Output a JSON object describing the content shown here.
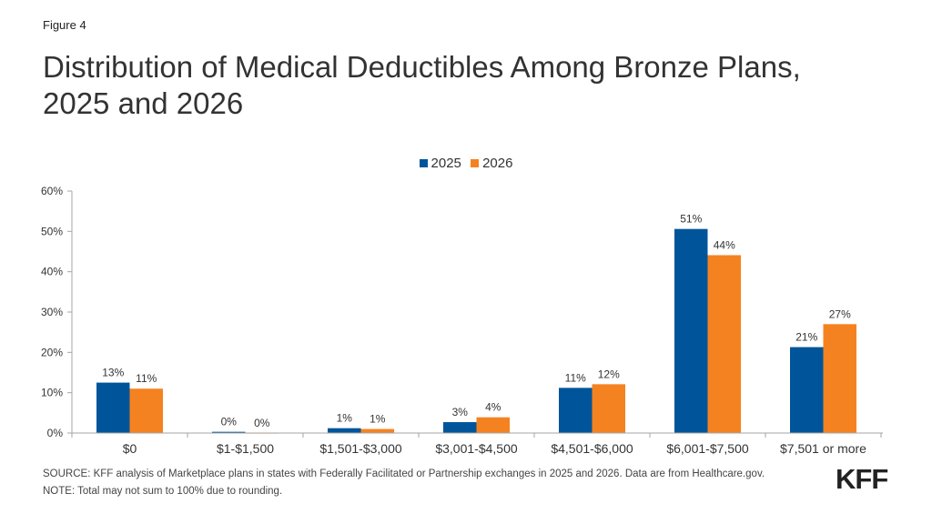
{
  "figure_label": "Figure 4",
  "title_line1": "Distribution of Medical Deductibles Among Bronze Plans,",
  "title_line2": "2025 and 2026",
  "colors": {
    "series_2025": "#00559A",
    "series_2026": "#F58220",
    "axis": "#A6A6A6",
    "text": "#333333"
  },
  "footer": {
    "source": "SOURCE: KFF analysis of Marketplace plans in states with Federally Facilitated or Partnership exchanges in 2025 and 2026. Data are from Healthcare.gov.",
    "note": "NOTE: Total may not sum to 100% due to rounding."
  },
  "logo": "KFF",
  "chart_data": {
    "type": "bar",
    "title": "Distribution of Medical Deductibles Among Bronze Plans, 2025 and 2026",
    "xlabel": "",
    "ylabel": "",
    "categories": [
      "$0",
      "$1-$1,500",
      "$1,501-$3,000",
      "$3,001-$4,500",
      "$4,501-$6,000",
      "$6,001-$7,500",
      "$7,501 or more"
    ],
    "series": [
      {
        "name": "2025",
        "values": [
          12.5,
          0.3,
          1.2,
          2.7,
          11.2,
          50.6,
          21.3
        ],
        "labels": [
          "13%",
          "0%",
          "1%",
          "3%",
          "11%",
          "51%",
          "21%"
        ]
      },
      {
        "name": "2026",
        "values": [
          11.0,
          0.0,
          1.0,
          3.9,
          12.1,
          44.1,
          27.0
        ],
        "labels": [
          "11%",
          "0%",
          "1%",
          "4%",
          "12%",
          "44%",
          "27%"
        ]
      }
    ],
    "ylim": [
      0,
      60
    ],
    "yticks": [
      0,
      10,
      20,
      30,
      40,
      50,
      60
    ],
    "ytick_labels": [
      "0%",
      "10%",
      "20%",
      "30%",
      "40%",
      "50%",
      "60%"
    ],
    "grid": false,
    "legend": {
      "position": "top-center",
      "entries": [
        "2025",
        "2026"
      ]
    }
  }
}
